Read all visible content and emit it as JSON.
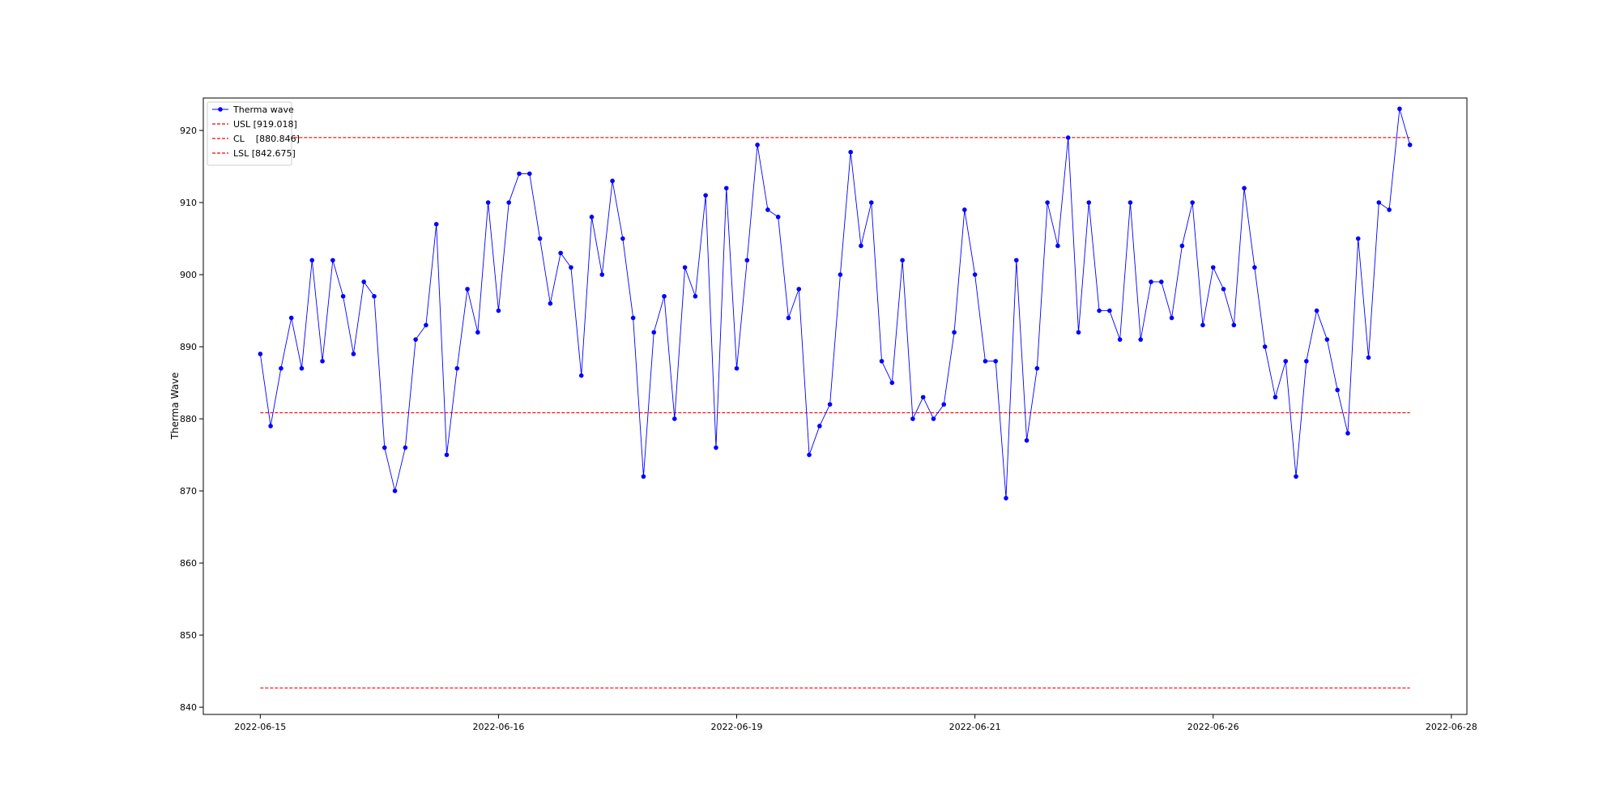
{
  "chart_data": {
    "type": "line",
    "title": "",
    "xlabel": "",
    "ylabel": "Therma Wave",
    "ylim": [
      839,
      924.5
    ],
    "yticks": [
      840,
      850,
      860,
      870,
      880,
      890,
      900,
      910,
      920
    ],
    "xticks": [
      {
        "index": 0,
        "label": "2022-06-15"
      },
      {
        "index": 23,
        "label": "2022-06-16"
      },
      {
        "index": 46,
        "label": "2022-06-19"
      },
      {
        "index": 69,
        "label": "2022-06-21"
      },
      {
        "index": 92,
        "label": "2022-06-26"
      },
      {
        "index": 115,
        "label": "2022-06-28"
      }
    ],
    "xlim": [
      -5.5,
      116.5
    ],
    "grid": false,
    "legend_position": "top-left",
    "series": [
      {
        "name": "Therma wave",
        "color": "#0000ff",
        "marker": "circle",
        "values": [
          889,
          879,
          887,
          894,
          887,
          902,
          888,
          902,
          897,
          889,
          899,
          897,
          876,
          870,
          876,
          891,
          893,
          907,
          875,
          887,
          898,
          892,
          910,
          895,
          910,
          914,
          914,
          905,
          896,
          903,
          901,
          886,
          908,
          900,
          913,
          905,
          894,
          872,
          892,
          897,
          880,
          901,
          897,
          911,
          876,
          912,
          887,
          902,
          918,
          909,
          908,
          894,
          898,
          875,
          879,
          882,
          900,
          917,
          904,
          910,
          888,
          885,
          902,
          880,
          883,
          880,
          882,
          892,
          909,
          900,
          888,
          888,
          869,
          902,
          877,
          887,
          910,
          904,
          919,
          892,
          910,
          895,
          895,
          891,
          910,
          891,
          899,
          899,
          894,
          904,
          910,
          893,
          901,
          898,
          893,
          912,
          901,
          890,
          883,
          888,
          872,
          888,
          895,
          891,
          884,
          878,
          905,
          888.5,
          910,
          909,
          923,
          918
        ]
      }
    ],
    "reference_lines": [
      {
        "name": "USL [919.018]",
        "value": 919.018,
        "color": "#ff0000",
        "style": "dashed"
      },
      {
        "name": "CL    [880.846]",
        "value": 880.846,
        "color": "#ff0000",
        "style": "dashed"
      },
      {
        "name": "LSL [842.675]",
        "value": 842.675,
        "color": "#ff0000",
        "style": "dashed"
      }
    ]
  }
}
